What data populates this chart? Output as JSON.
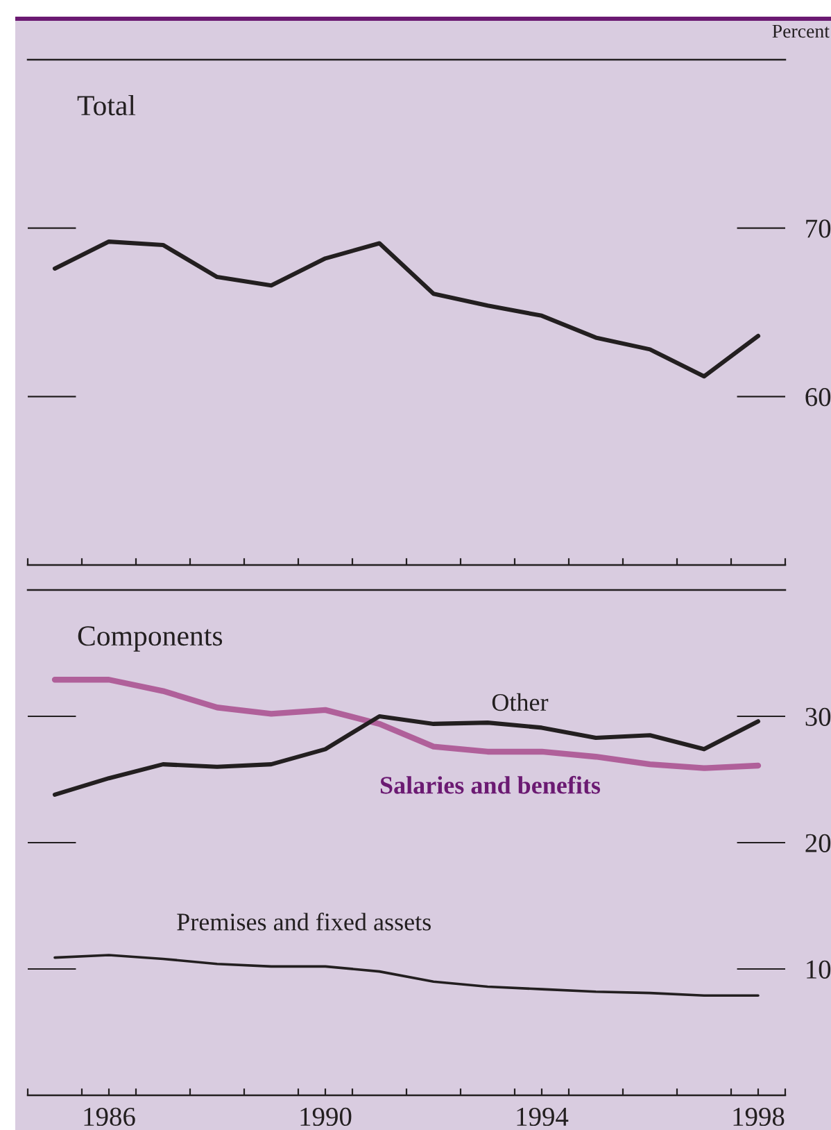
{
  "chart_data": [
    {
      "type": "line",
      "title": "Total",
      "ylabel": "Percent",
      "x": [
        1985,
        1986,
        1987,
        1988,
        1989,
        1990,
        1991,
        1992,
        1993,
        1994,
        1995,
        1996,
        1997,
        1998
      ],
      "series": [
        {
          "color": "#231f20",
          "values": [
            67.6,
            69.2,
            69.0,
            67.1,
            66.6,
            68.2,
            69.1,
            66.1,
            65.4,
            64.8,
            63.5,
            62.8,
            61.2,
            63.6
          ]
        }
      ],
      "xlim": [
        1984.5,
        1998.5
      ],
      "xticks": [
        {
          "value": 1984.5,
          "label": null
        },
        {
          "value": 1985.5,
          "label": null
        },
        {
          "value": 1986.5,
          "label": null
        },
        {
          "value": 1987.5,
          "label": null
        },
        {
          "value": 1988.5,
          "label": null
        },
        {
          "value": 1989.5,
          "label": null
        },
        {
          "value": 1990.5,
          "label": null
        },
        {
          "value": 1991.5,
          "label": null
        },
        {
          "value": 1992.5,
          "label": null
        },
        {
          "value": 1993.5,
          "label": null
        },
        {
          "value": 1994.5,
          "label": null
        },
        {
          "value": 1995.5,
          "label": null
        },
        {
          "value": 1996.5,
          "label": null
        },
        {
          "value": 1997.5,
          "label": null
        },
        {
          "value": 1998.5,
          "label": null
        }
      ],
      "ylim": [
        50,
        80
      ],
      "yticks": [
        60,
        70
      ],
      "tick_labels": "y",
      "grid": false,
      "legend": false
    },
    {
      "type": "line",
      "title": "Components",
      "x": [
        1985,
        1986,
        1987,
        1988,
        1989,
        1990,
        1991,
        1992,
        1993,
        1994,
        1995,
        1996,
        1997,
        1998
      ],
      "series": [
        {
          "name": "Salaries and benefits",
          "color": "#b0609a",
          "values": [
            32.9,
            32.9,
            32.0,
            30.7,
            30.2,
            30.5,
            29.4,
            27.6,
            27.2,
            27.2,
            26.8,
            26.2,
            25.9,
            26.1
          ]
        },
        {
          "name": "Other",
          "color": "#231f20",
          "values": [
            23.8,
            25.1,
            26.2,
            26.0,
            26.2,
            27.4,
            30.0,
            29.4,
            29.5,
            29.1,
            28.3,
            28.5,
            27.4,
            29.6
          ]
        },
        {
          "name": "Premises and fixed assets",
          "color": "#231f20",
          "values": [
            10.9,
            11.1,
            10.8,
            10.4,
            10.2,
            10.2,
            9.8,
            9.0,
            8.6,
            8.4,
            8.2,
            8.1,
            7.9,
            7.9
          ]
        }
      ],
      "xlim": [
        1984.5,
        1998.5
      ],
      "xticks": [
        {
          "value": 1984.5,
          "label": null
        },
        {
          "value": 1985.5,
          "label": null
        },
        {
          "value": 1986,
          "label": "1986"
        },
        {
          "value": 1986.5,
          "label": null
        },
        {
          "value": 1987.5,
          "label": null
        },
        {
          "value": 1988.5,
          "label": null
        },
        {
          "value": 1989.5,
          "label": null
        },
        {
          "value": 1990,
          "label": "1990"
        },
        {
          "value": 1990.5,
          "label": null
        },
        {
          "value": 1991.5,
          "label": null
        },
        {
          "value": 1992.5,
          "label": null
        },
        {
          "value": 1993.5,
          "label": null
        },
        {
          "value": 1994,
          "label": "1994"
        },
        {
          "value": 1994.5,
          "label": null
        },
        {
          "value": 1995.5,
          "label": null
        },
        {
          "value": 1996.5,
          "label": null
        },
        {
          "value": 1997.5,
          "label": null
        },
        {
          "value": 1998,
          "label": "1998"
        },
        {
          "value": 1998.5,
          "label": null
        }
      ],
      "ylim": [
        0,
        40
      ],
      "yticks": [
        10,
        20,
        30
      ],
      "grid": false,
      "legend": false
    }
  ]
}
